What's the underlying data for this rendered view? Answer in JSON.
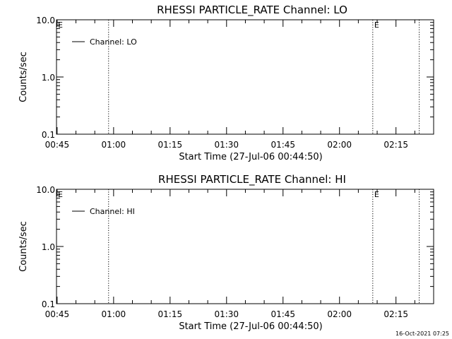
{
  "colors": {
    "background": "#ffffff",
    "foreground": "#000000"
  },
  "footer": {
    "timestamp": "16-Oct-2021 07:25"
  },
  "chart_data": [
    {
      "type": "line",
      "title": "RHESSI PARTICLE_RATE Channel: LO",
      "xlabel": "Start Time (27-Jul-06 00:44:50)",
      "ylabel": "Counts/sec",
      "yscale": "log",
      "ylim": [
        0.1,
        10.0
      ],
      "xlim": [
        "00:44:50",
        "02:25:00"
      ],
      "x_tick_labels": [
        "00:45",
        "01:00",
        "01:15",
        "01:30",
        "01:45",
        "02:00",
        "02:15"
      ],
      "x_ticks": [
        "00:45",
        "01:00",
        "01:15",
        "01:30",
        "01:45",
        "02:00",
        "02:15"
      ],
      "y_tick_labels": [
        "10.0",
        "1.0",
        "0.1"
      ],
      "y_ticks": [
        10.0,
        1.0,
        0.1
      ],
      "legend": {
        "position": "top-left",
        "entries": [
          "Channel: LO"
        ]
      },
      "series": [
        {
          "name": "Channel: LO",
          "x": [],
          "y": []
        }
      ],
      "vertical_lines": [
        "00:58:40",
        "02:08:50",
        "02:21:10"
      ],
      "markers": [
        {
          "label": "E",
          "x": "00:44:50"
        },
        {
          "label": "E",
          "x": "02:08:50"
        }
      ]
    },
    {
      "type": "line",
      "title": "RHESSI PARTICLE_RATE Channel: HI",
      "xlabel": "Start Time (27-Jul-06 00:44:50)",
      "ylabel": "Counts/sec",
      "yscale": "log",
      "ylim": [
        0.1,
        10.0
      ],
      "xlim": [
        "00:44:50",
        "02:25:00"
      ],
      "x_tick_labels": [
        "00:45",
        "01:00",
        "01:15",
        "01:30",
        "01:45",
        "02:00",
        "02:15"
      ],
      "x_ticks": [
        "00:45",
        "01:00",
        "01:15",
        "01:30",
        "01:45",
        "02:00",
        "02:15"
      ],
      "y_tick_labels": [
        "10.0",
        "1.0",
        "0.1"
      ],
      "y_ticks": [
        10.0,
        1.0,
        0.1
      ],
      "legend": {
        "position": "top-left",
        "entries": [
          "Channel: HI"
        ]
      },
      "series": [
        {
          "name": "Channel: HI",
          "x": [],
          "y": []
        }
      ],
      "vertical_lines": [
        "00:58:40",
        "02:08:50",
        "02:21:10"
      ],
      "markers": [
        {
          "label": "E",
          "x": "00:44:50"
        },
        {
          "label": "E",
          "x": "02:08:50"
        }
      ]
    }
  ]
}
